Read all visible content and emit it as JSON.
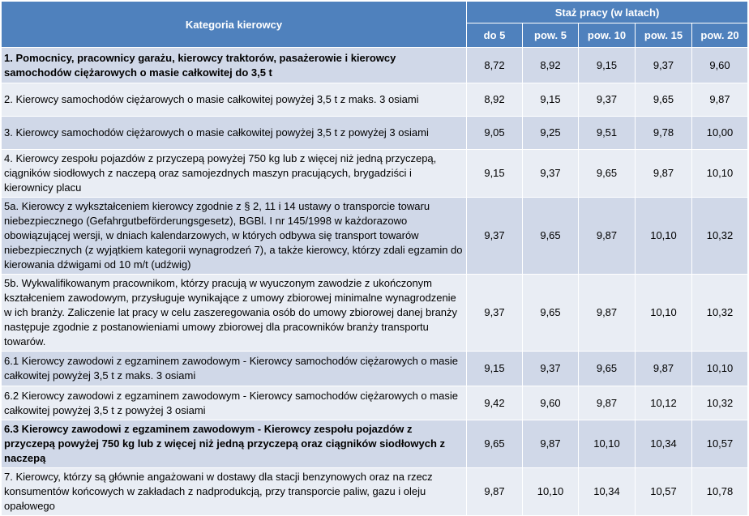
{
  "header": {
    "category_label": "Kategoria kierowcy",
    "seniority_label": "Staż pracy (w latach)",
    "columns": [
      "do 5",
      "pow. 5",
      "pow. 10",
      "pow. 15",
      "pow. 20"
    ]
  },
  "rows": [
    {
      "category": "1. Pomocnicy, pracownicy garażu, kierowcy traktorów, pasażerowie i kierowcy samochodów ciężarowych o masie całkowitej do 3,5 t",
      "values": [
        "8,72",
        "8,92",
        "9,15",
        "9,37",
        "9,60"
      ]
    },
    {
      "category": "2. Kierowcy samochodów ciężarowych o masie całkowitej powyżej 3,5 t z maks. 3 osiami",
      "values": [
        "8,92",
        "9,15",
        "9,37",
        "9,65",
        "9,87"
      ]
    },
    {
      "category": "3. Kierowcy samochodów ciężarowych o masie całkowitej powyżej 3,5 t z powyżej 3 osiami",
      "values": [
        "9,05",
        "9,25",
        "9,51",
        "9,78",
        "10,00"
      ]
    },
    {
      "category": "4. Kierowcy zespołu pojazdów z przyczepą powyżej 750 kg lub z więcej niż jedną przyczepą, ciągników siodłowych z naczepą oraz samojezdnych maszyn pracujących, brygadziści i kierownicy placu",
      "values": [
        "9,15",
        "9,37",
        "9,65",
        "9,87",
        "10,10"
      ]
    },
    {
      "category": "5a. Kierowcy z wykształceniem kierowcy zgodnie z  § 2, 11 i 14 ustawy o transporcie towaru niebezpiecznego (Gefahrgutbeförderungsgesetz), BGBl. I nr 145/1998 w każdorazowo obowiązującej wersji, w dniach kalendarzowych, w których odbywa się transport towarów niebezpiecznych (z wyjątkiem kategorii wynagrodzeń 7), a także kierowcy, którzy zdali egzamin do kierowania dźwigami od 10 m/t (udźwig)",
      "values": [
        "9,37",
        "9,65",
        "9,87",
        "10,10",
        "10,32"
      ]
    },
    {
      "category": "5b. Wykwalifikowanym pracownikom, którzy pracują w wyuczonym zawodzie z ukończonym kształceniem zawodowym, przysługuje wynikające z umowy zbiorowej minimalne wynagrodzenie w ich branży. Zaliczenie lat pracy w celu zaszeregowania osób do umowy zbiorowej danej branży następuje zgodnie z postanowieniami umowy zbiorowej dla pracowników branży transportu towarów.",
      "values": [
        "9,37",
        "9,65",
        "9,87",
        "10,10",
        "10,32"
      ]
    },
    {
      "category": "6.1 Kierowcy zawodowi z egzaminem zawodowym - Kierowcy samochodów ciężarowych o masie całkowitej powyżej 3,5 t z maks. 3 osiami",
      "values": [
        "9,15",
        "9,37",
        "9,65",
        "9,87",
        "10,10"
      ]
    },
    {
      "category": "6.2 Kierowcy zawodowi z egzaminem zawodowym - Kierowcy samochodów ciężarowych o masie całkowitej powyżej 3,5 t z powyżej 3 osiami",
      "values": [
        "9,42",
        "9,60",
        "9,87",
        "10,12",
        "10,32"
      ]
    },
    {
      "category": "6.3 Kierowcy zawodowi z egzaminem zawodowym - Kierowcy zespołu pojazdów z przyczepą powyżej 750 kg lub z więcej niż jedną przyczepą oraz ciągników siodłowych z naczepą",
      "values": [
        "9,65",
        "9,87",
        "10,10",
        "10,34",
        "10,57"
      ]
    },
    {
      "category": "7. Kierowcy, którzy są głównie angażowani w dostawy dla stacji benzynowych oraz na rzecz konsumentów końcowych w zakładach z nadprodukcją, przy transporcie paliw, gazu i oleju opałowego",
      "values": [
        "9,87",
        "10,10",
        "10,34",
        "10,57",
        "10,78"
      ]
    }
  ]
}
